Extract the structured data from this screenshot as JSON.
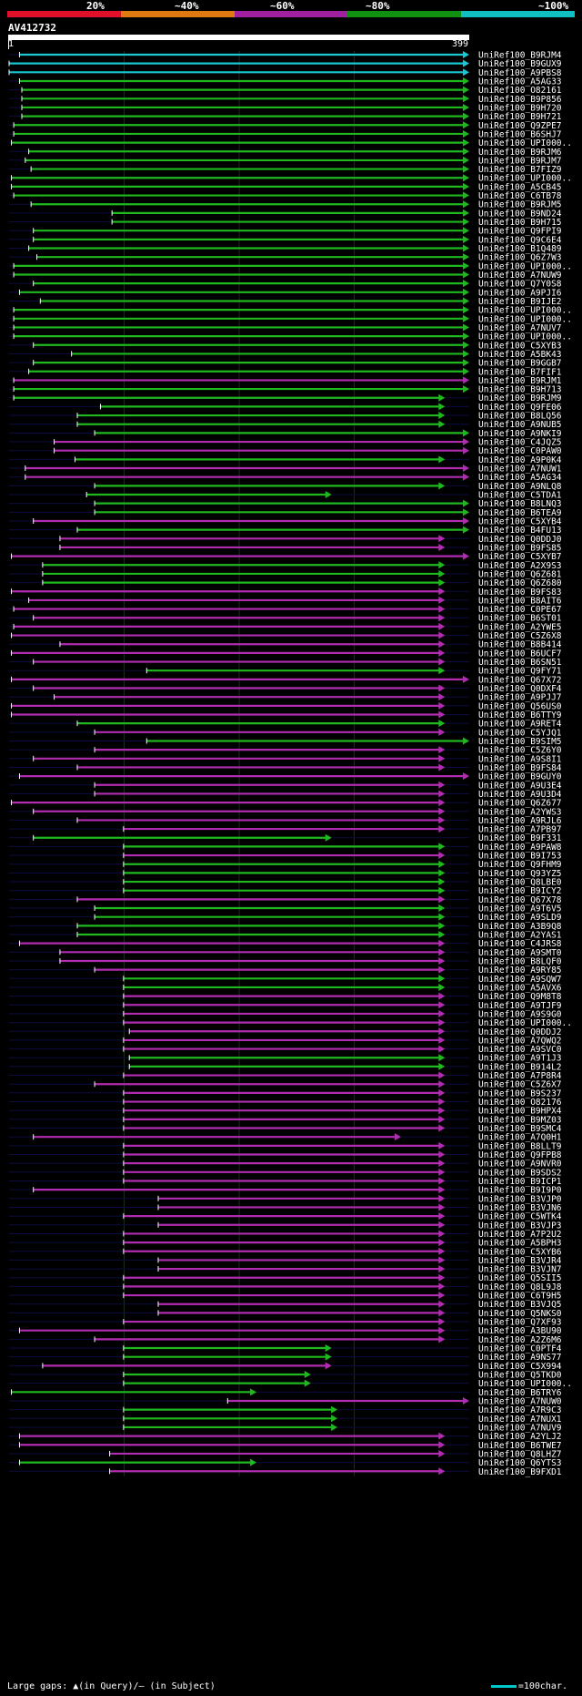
{
  "legend": {
    "labels": [
      "20%",
      "~40%",
      "~60%",
      "~80%",
      "~100%"
    ],
    "colors": [
      "#e0102a",
      "#e07a10",
      "#a020a0",
      "#109010",
      "#10c0c0"
    ]
  },
  "query": {
    "id": "AV412732",
    "start": "1",
    "end": "399"
  },
  "chart_data": {
    "type": "table",
    "query_length": 399,
    "identity_color_key": {
      "green": "~80%",
      "magenta": "~60%",
      "cyan": "~100%"
    },
    "hits": [
      {
        "id": "UniRef100_B9RJM4",
        "start": 10,
        "end": 399,
        "color": "cyan"
      },
      {
        "id": "UniRef100_B9GUX9",
        "start": 1,
        "end": 399,
        "color": "cyan"
      },
      {
        "id": "UniRef100_A9PBS8",
        "start": 1,
        "end": 399,
        "color": "cyan"
      },
      {
        "id": "UniRef100_A5AG33",
        "start": 10,
        "end": 399,
        "color": "green"
      },
      {
        "id": "UniRef100_O82161",
        "start": 12,
        "end": 399,
        "color": "green"
      },
      {
        "id": "UniRef100_B9P856",
        "start": 12,
        "end": 399,
        "color": "green"
      },
      {
        "id": "UniRef100_B9H720",
        "start": 12,
        "end": 399,
        "color": "green"
      },
      {
        "id": "UniRef100_B9H721",
        "start": 12,
        "end": 399,
        "color": "green"
      },
      {
        "id": "UniRef100_Q9ZPE7",
        "start": 5,
        "end": 399,
        "color": "green"
      },
      {
        "id": "UniRef100_B6SHJ7",
        "start": 5,
        "end": 399,
        "color": "green"
      },
      {
        "id": "UniRef100_UPI000..",
        "start": 3,
        "end": 399,
        "color": "green"
      },
      {
        "id": "UniRef100_B9RJM6",
        "start": 18,
        "end": 399,
        "color": "green"
      },
      {
        "id": "UniRef100_B9RJM7",
        "start": 15,
        "end": 399,
        "color": "green"
      },
      {
        "id": "UniRef100_B7FIZ9",
        "start": 20,
        "end": 399,
        "color": "green"
      },
      {
        "id": "UniRef100_UPI000..",
        "start": 3,
        "end": 399,
        "color": "green"
      },
      {
        "id": "UniRef100_A5CB45",
        "start": 3,
        "end": 399,
        "color": "green"
      },
      {
        "id": "UniRef100_C6TB78",
        "start": 5,
        "end": 399,
        "color": "green"
      },
      {
        "id": "UniRef100_B9RJM5",
        "start": 20,
        "end": 399,
        "color": "green"
      },
      {
        "id": "UniRef100_B9ND24",
        "start": 90,
        "end": 399,
        "color": "green"
      },
      {
        "id": "UniRef100_B9H715",
        "start": 90,
        "end": 399,
        "color": "green"
      },
      {
        "id": "UniRef100_Q9FPI9",
        "start": 22,
        "end": 399,
        "color": "green"
      },
      {
        "id": "UniRef100_Q9C6E4",
        "start": 22,
        "end": 399,
        "color": "green"
      },
      {
        "id": "UniRef100_B1Q489",
        "start": 18,
        "end": 399,
        "color": "green"
      },
      {
        "id": "UniRef100_Q6Z7W3",
        "start": 25,
        "end": 399,
        "color": "green"
      },
      {
        "id": "UniRef100_UPI000..",
        "start": 5,
        "end": 399,
        "color": "green"
      },
      {
        "id": "UniRef100_A7NUW9",
        "start": 5,
        "end": 399,
        "color": "green"
      },
      {
        "id": "UniRef100_Q7Y0S8",
        "start": 22,
        "end": 399,
        "color": "green"
      },
      {
        "id": "UniRef100_A9PJI6",
        "start": 10,
        "end": 399,
        "color": "green"
      },
      {
        "id": "UniRef100_B9IJE2",
        "start": 28,
        "end": 399,
        "color": "green"
      },
      {
        "id": "UniRef100_UPI000..",
        "start": 5,
        "end": 399,
        "color": "green"
      },
      {
        "id": "UniRef100_UPI000..",
        "start": 5,
        "end": 399,
        "color": "green"
      },
      {
        "id": "UniRef100_A7NUV7",
        "start": 5,
        "end": 399,
        "color": "green"
      },
      {
        "id": "UniRef100_UPI000..",
        "start": 5,
        "end": 399,
        "color": "green"
      },
      {
        "id": "UniRef100_C5XYB3",
        "start": 22,
        "end": 399,
        "color": "green"
      },
      {
        "id": "UniRef100_A5BK43",
        "start": 55,
        "end": 399,
        "color": "green"
      },
      {
        "id": "UniRef100_B9GGB7",
        "start": 22,
        "end": 399,
        "color": "green"
      },
      {
        "id": "UniRef100_B7FIF1",
        "start": 18,
        "end": 399,
        "color": "green"
      },
      {
        "id": "UniRef100_B9RJM1",
        "start": 5,
        "end": 399,
        "color": "magenta"
      },
      {
        "id": "UniRef100_B9H713",
        "start": 5,
        "end": 399,
        "color": "green"
      },
      {
        "id": "UniRef100_B9RJM9",
        "start": 5,
        "end": 378,
        "color": "green"
      },
      {
        "id": "UniRef100_Q9FE06",
        "start": 80,
        "end": 378,
        "color": "green"
      },
      {
        "id": "UniRef100_B8LQ56",
        "start": 60,
        "end": 378,
        "color": "green"
      },
      {
        "id": "UniRef100_A9NUB5",
        "start": 60,
        "end": 378,
        "color": "green"
      },
      {
        "id": "UniRef100_A9NKI9",
        "start": 75,
        "end": 399,
        "color": "green"
      },
      {
        "id": "UniRef100_C4JQZ5",
        "start": 40,
        "end": 399,
        "color": "magenta"
      },
      {
        "id": "UniRef100_C0PAW0",
        "start": 40,
        "end": 399,
        "color": "magenta"
      },
      {
        "id": "UniRef100_A9P0K4",
        "start": 58,
        "end": 378,
        "color": "green"
      },
      {
        "id": "UniRef100_A7NUW1",
        "start": 15,
        "end": 399,
        "color": "magenta"
      },
      {
        "id": "UniRef100_A5AG34",
        "start": 15,
        "end": 399,
        "color": "magenta"
      },
      {
        "id": "UniRef100_A9NLQ8",
        "start": 75,
        "end": 378,
        "color": "green"
      },
      {
        "id": "UniRef100_C5TDA1",
        "start": 68,
        "end": 280,
        "color": "green"
      },
      {
        "id": "UniRef100_B8LNQ3",
        "start": 75,
        "end": 399,
        "color": "green"
      },
      {
        "id": "UniRef100_B6TEA9",
        "start": 75,
        "end": 399,
        "color": "green"
      },
      {
        "id": "UniRef100_C5XYB4",
        "start": 22,
        "end": 399,
        "color": "magenta"
      },
      {
        "id": "UniRef100_B4FU13",
        "start": 60,
        "end": 399,
        "color": "green"
      },
      {
        "id": "UniRef100_Q0DDJ0",
        "start": 45,
        "end": 378,
        "color": "magenta"
      },
      {
        "id": "UniRef100_B9FS85",
        "start": 45,
        "end": 378,
        "color": "magenta"
      },
      {
        "id": "UniRef100_C5XYB7",
        "start": 3,
        "end": 399,
        "color": "magenta"
      },
      {
        "id": "UniRef100_A2X9S3",
        "start": 30,
        "end": 378,
        "color": "green"
      },
      {
        "id": "UniRef100_Q6Z681",
        "start": 30,
        "end": 378,
        "color": "green"
      },
      {
        "id": "UniRef100_Q6Z680",
        "start": 30,
        "end": 378,
        "color": "green"
      },
      {
        "id": "UniRef100_B9FS83",
        "start": 3,
        "end": 378,
        "color": "magenta"
      },
      {
        "id": "UniRef100_B8AIT6",
        "start": 18,
        "end": 378,
        "color": "magenta"
      },
      {
        "id": "UniRef100_C0PE67",
        "start": 5,
        "end": 378,
        "color": "magenta"
      },
      {
        "id": "UniRef100_B6ST01",
        "start": 22,
        "end": 378,
        "color": "magenta"
      },
      {
        "id": "UniRef100_A2YWE5",
        "start": 5,
        "end": 378,
        "color": "magenta"
      },
      {
        "id": "UniRef100_C5Z6X8",
        "start": 3,
        "end": 378,
        "color": "magenta"
      },
      {
        "id": "UniRef100_B8B414",
        "start": 45,
        "end": 378,
        "color": "magenta"
      },
      {
        "id": "UniRef100_B6UCF7",
        "start": 3,
        "end": 378,
        "color": "magenta"
      },
      {
        "id": "UniRef100_B6SN51",
        "start": 22,
        "end": 378,
        "color": "magenta"
      },
      {
        "id": "UniRef100_Q9FY71",
        "start": 120,
        "end": 378,
        "color": "green"
      },
      {
        "id": "UniRef100_Q67X72",
        "start": 3,
        "end": 399,
        "color": "magenta"
      },
      {
        "id": "UniRef100_Q0DXF4",
        "start": 22,
        "end": 378,
        "color": "magenta"
      },
      {
        "id": "UniRef100_A9PJJ7",
        "start": 40,
        "end": 378,
        "color": "magenta"
      },
      {
        "id": "UniRef100_Q56US0",
        "start": 3,
        "end": 378,
        "color": "magenta"
      },
      {
        "id": "UniRef100_B6TTY9",
        "start": 3,
        "end": 378,
        "color": "magenta"
      },
      {
        "id": "UniRef100_A9RET4",
        "start": 60,
        "end": 378,
        "color": "green"
      },
      {
        "id": "UniRef100_C5YJQ1",
        "start": 75,
        "end": 378,
        "color": "magenta"
      },
      {
        "id": "UniRef100_B9SIM5",
        "start": 120,
        "end": 399,
        "color": "green"
      },
      {
        "id": "UniRef100_C5Z6Y0",
        "start": 75,
        "end": 378,
        "color": "magenta"
      },
      {
        "id": "UniRef100_A9S8I1",
        "start": 22,
        "end": 378,
        "color": "magenta"
      },
      {
        "id": "UniRef100_B9FS84",
        "start": 60,
        "end": 378,
        "color": "magenta"
      },
      {
        "id": "UniRef100_B9GUY0",
        "start": 10,
        "end": 399,
        "color": "magenta"
      },
      {
        "id": "UniRef100_A9U3E4",
        "start": 75,
        "end": 378,
        "color": "magenta"
      },
      {
        "id": "UniRef100_A9U3D4",
        "start": 75,
        "end": 378,
        "color": "magenta"
      },
      {
        "id": "UniRef100_Q6Z677",
        "start": 3,
        "end": 378,
        "color": "magenta"
      },
      {
        "id": "UniRef100_A2YWS3",
        "start": 22,
        "end": 378,
        "color": "magenta"
      },
      {
        "id": "UniRef100_A9RJL6",
        "start": 60,
        "end": 378,
        "color": "magenta"
      },
      {
        "id": "UniRef100_A7PB97",
        "start": 100,
        "end": 378,
        "color": "magenta"
      },
      {
        "id": "UniRef100_B9F331",
        "start": 22,
        "end": 280,
        "color": "green"
      },
      {
        "id": "UniRef100_A9PAW8",
        "start": 100,
        "end": 378,
        "color": "green"
      },
      {
        "id": "UniRef100_B9I753",
        "start": 100,
        "end": 378,
        "color": "magenta"
      },
      {
        "id": "UniRef100_Q9FHM9",
        "start": 100,
        "end": 378,
        "color": "green"
      },
      {
        "id": "UniRef100_Q93YZ5",
        "start": 100,
        "end": 378,
        "color": "green"
      },
      {
        "id": "UniRef100_Q8LBE0",
        "start": 100,
        "end": 378,
        "color": "green"
      },
      {
        "id": "UniRef100_B9ICY2",
        "start": 100,
        "end": 378,
        "color": "green"
      },
      {
        "id": "UniRef100_Q67X78",
        "start": 60,
        "end": 378,
        "color": "magenta"
      },
      {
        "id": "UniRef100_A9T6V5",
        "start": 75,
        "end": 378,
        "color": "green"
      },
      {
        "id": "UniRef100_A9SLD9",
        "start": 75,
        "end": 378,
        "color": "green"
      },
      {
        "id": "UniRef100_A3B9Q8",
        "start": 60,
        "end": 378,
        "color": "green"
      },
      {
        "id": "UniRef100_A2YAS1",
        "start": 60,
        "end": 378,
        "color": "green"
      },
      {
        "id": "UniRef100_C4JRS8",
        "start": 10,
        "end": 378,
        "color": "magenta"
      },
      {
        "id": "UniRef100_A9SMT0",
        "start": 45,
        "end": 378,
        "color": "magenta"
      },
      {
        "id": "UniRef100_B8LQF0",
        "start": 45,
        "end": 378,
        "color": "magenta"
      },
      {
        "id": "UniRef100_A9RY85",
        "start": 75,
        "end": 378,
        "color": "magenta"
      },
      {
        "id": "UniRef100_A9SQW7",
        "start": 100,
        "end": 378,
        "color": "green"
      },
      {
        "id": "UniRef100_A5AVX6",
        "start": 100,
        "end": 378,
        "color": "green"
      },
      {
        "id": "UniRef100_Q9M8T8",
        "start": 100,
        "end": 378,
        "color": "magenta"
      },
      {
        "id": "UniRef100_A9TJF9",
        "start": 100,
        "end": 378,
        "color": "magenta"
      },
      {
        "id": "UniRef100_A9S9G0",
        "start": 100,
        "end": 378,
        "color": "magenta"
      },
      {
        "id": "UniRef100_UPI000..",
        "start": 100,
        "end": 378,
        "color": "magenta"
      },
      {
        "id": "UniRef100_Q0DDJ2",
        "start": 105,
        "end": 378,
        "color": "magenta"
      },
      {
        "id": "UniRef100_A7QWQ2",
        "start": 100,
        "end": 378,
        "color": "magenta"
      },
      {
        "id": "UniRef100_A9SVC0",
        "start": 100,
        "end": 378,
        "color": "magenta"
      },
      {
        "id": "UniRef100_A9T1J3",
        "start": 105,
        "end": 378,
        "color": "green"
      },
      {
        "id": "UniRef100_B914L2",
        "start": 105,
        "end": 378,
        "color": "green"
      },
      {
        "id": "UniRef100_A7P8R4",
        "start": 100,
        "end": 378,
        "color": "magenta"
      },
      {
        "id": "UniRef100_C5Z6X7",
        "start": 75,
        "end": 378,
        "color": "magenta"
      },
      {
        "id": "UniRef100_B9S237",
        "start": 100,
        "end": 378,
        "color": "magenta"
      },
      {
        "id": "UniRef100_O82176",
        "start": 100,
        "end": 378,
        "color": "magenta"
      },
      {
        "id": "UniRef100_B9HPX4",
        "start": 100,
        "end": 378,
        "color": "magenta"
      },
      {
        "id": "UniRef100_B9MZ03",
        "start": 100,
        "end": 378,
        "color": "magenta"
      },
      {
        "id": "UniRef100_B9SMC4",
        "start": 100,
        "end": 378,
        "color": "magenta"
      },
      {
        "id": "UniRef100_A7Q0H1",
        "start": 22,
        "end": 340,
        "color": "magenta"
      },
      {
        "id": "UniRef100_B8LLT9",
        "start": 100,
        "end": 378,
        "color": "magenta"
      },
      {
        "id": "UniRef100_Q9FPB8",
        "start": 100,
        "end": 378,
        "color": "magenta"
      },
      {
        "id": "UniRef100_A9NVR0",
        "start": 100,
        "end": 378,
        "color": "magenta"
      },
      {
        "id": "UniRef100_B9SDS2",
        "start": 100,
        "end": 378,
        "color": "magenta"
      },
      {
        "id": "UniRef100_B9ICP1",
        "start": 100,
        "end": 378,
        "color": "magenta"
      },
      {
        "id": "UniRef100_B9I9P0",
        "start": 22,
        "end": 378,
        "color": "magenta"
      },
      {
        "id": "UniRef100_B3VJP0",
        "start": 130,
        "end": 378,
        "color": "magenta"
      },
      {
        "id": "UniRef100_B3VJN6",
        "start": 130,
        "end": 378,
        "color": "magenta"
      },
      {
        "id": "UniRef100_C5WTK4",
        "start": 100,
        "end": 378,
        "color": "magenta"
      },
      {
        "id": "UniRef100_B3VJP3",
        "start": 130,
        "end": 378,
        "color": "magenta"
      },
      {
        "id": "UniRef100_A7P2U2",
        "start": 100,
        "end": 378,
        "color": "magenta"
      },
      {
        "id": "UniRef100_A5BPH3",
        "start": 100,
        "end": 378,
        "color": "magenta"
      },
      {
        "id": "UniRef100_C5XYB6",
        "start": 100,
        "end": 378,
        "color": "magenta"
      },
      {
        "id": "UniRef100_B3VJR4",
        "start": 130,
        "end": 378,
        "color": "magenta"
      },
      {
        "id": "UniRef100_B3VJN7",
        "start": 130,
        "end": 378,
        "color": "magenta"
      },
      {
        "id": "UniRef100_Q5SII5",
        "start": 100,
        "end": 378,
        "color": "magenta"
      },
      {
        "id": "UniRef100_Q8L9J8",
        "start": 100,
        "end": 378,
        "color": "magenta"
      },
      {
        "id": "UniRef100_C6T9H5",
        "start": 100,
        "end": 378,
        "color": "magenta"
      },
      {
        "id": "UniRef100_B3VJQ5",
        "start": 130,
        "end": 378,
        "color": "magenta"
      },
      {
        "id": "UniRef100_Q5NKS0",
        "start": 130,
        "end": 378,
        "color": "magenta"
      },
      {
        "id": "UniRef100_Q7XF93",
        "start": 100,
        "end": 378,
        "color": "magenta"
      },
      {
        "id": "UniRef100_A3BU90",
        "start": 10,
        "end": 378,
        "color": "magenta"
      },
      {
        "id": "UniRef100_A2Z6M6",
        "start": 75,
        "end": 378,
        "color": "magenta"
      },
      {
        "id": "UniRef100_C0PTF4",
        "start": 100,
        "end": 280,
        "color": "green"
      },
      {
        "id": "UniRef100_A9NS77",
        "start": 100,
        "end": 280,
        "color": "green"
      },
      {
        "id": "UniRef100_C5X994",
        "start": 30,
        "end": 280,
        "color": "magenta"
      },
      {
        "id": "UniRef100_Q5TKD0",
        "start": 100,
        "end": 262,
        "color": "green"
      },
      {
        "id": "UniRef100_UPI000..",
        "start": 100,
        "end": 262,
        "color": "green"
      },
      {
        "id": "UniRef100_B6TRY6",
        "start": 3,
        "end": 215,
        "color": "green"
      },
      {
        "id": "UniRef100_A7NUW0",
        "start": 190,
        "end": 399,
        "color": "magenta"
      },
      {
        "id": "UniRef100_A7R9C3",
        "start": 100,
        "end": 285,
        "color": "green"
      },
      {
        "id": "UniRef100_A7NUX1",
        "start": 100,
        "end": 285,
        "color": "green"
      },
      {
        "id": "UniRef100_A7NUV9",
        "start": 100,
        "end": 285,
        "color": "green"
      },
      {
        "id": "UniRef100_A2YLJ2",
        "start": 10,
        "end": 378,
        "color": "magenta"
      },
      {
        "id": "UniRef100_B6TWE7",
        "start": 10,
        "end": 378,
        "color": "magenta"
      },
      {
        "id": "UniRef100_Q8LHZ7",
        "start": 88,
        "end": 378,
        "color": "magenta"
      },
      {
        "id": "UniRef100_Q6YTS3",
        "start": 10,
        "end": 215,
        "color": "green"
      },
      {
        "id": "UniRef100_B9FXD1",
        "start": 88,
        "end": 378,
        "color": "magenta"
      }
    ]
  },
  "footer": {
    "gaps_label": "Large gaps: ▲(in Query)/— (in Subject)",
    "scale_label": "=100char."
  }
}
